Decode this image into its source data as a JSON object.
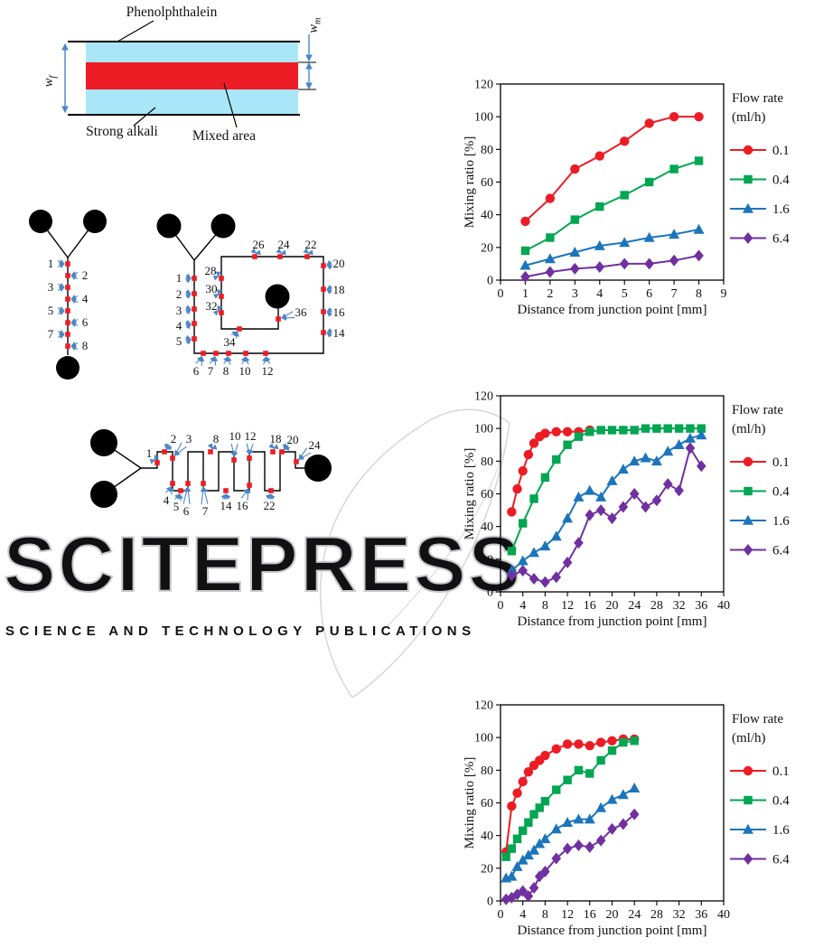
{
  "colors": {
    "phenolphthalein_layer": "#a9e7f8",
    "mixed_area_red": "#ee1c25",
    "annotation_arrow_blue": "#4a86c8",
    "series_red": "#ed1c24",
    "series_green": "#00a651",
    "series_blue": "#1c75bb",
    "series_purple": "#7030a0",
    "watermark_gray": "#c6c9ce"
  },
  "figure": {
    "cross_section": {
      "top_label": "Phenolphthalein",
      "bottom_left_label": "Strong alkali",
      "bottom_right_label": "Mixed area",
      "width_full": {
        "base": "w",
        "sub": "f"
      },
      "width_mixed": {
        "base": "w",
        "sub": "m"
      }
    },
    "mixers": {
      "straight": {
        "point_labels": [
          "1",
          "2",
          "3",
          "4",
          "5",
          "6",
          "7",
          "8"
        ]
      },
      "square_spiral": {
        "point_labels": [
          "1",
          "2",
          "3",
          "4",
          "5",
          "6",
          "7",
          "8",
          "10",
          "12",
          "14",
          "16",
          "18",
          "20",
          "22",
          "24",
          "26",
          "28",
          "30",
          "32",
          "34",
          "36"
        ]
      },
      "serpentine": {
        "point_labels": [
          "1",
          "2",
          "3",
          "4",
          "5",
          "6",
          "7",
          "8",
          "10",
          "12",
          "14",
          "16",
          "18",
          "20",
          "22",
          "24"
        ]
      }
    }
  },
  "watermark": {
    "title": "SCITEPRESS",
    "subtitle": "SCIENCE AND TECHNOLOGY PUBLICATIONS"
  },
  "chart_data": [
    {
      "type": "line",
      "title": "",
      "xlabel": "Distance from junction point [mm]",
      "ylabel": "Mixing ratio [%]",
      "xlim": [
        0,
        9
      ],
      "ylim": [
        0,
        120
      ],
      "xticks": [
        0,
        1,
        2,
        3,
        4,
        5,
        6,
        7,
        8,
        9
      ],
      "yticks": [
        0,
        20,
        40,
        60,
        80,
        100,
        120
      ],
      "grid": false,
      "legend_position": "right",
      "legend_title": [
        "Flow rate",
        "(ml/h)"
      ],
      "series": [
        {
          "name": "0.1",
          "marker": "circle",
          "color": "#ed1c24",
          "x": [
            1,
            2,
            3,
            4,
            5,
            6,
            7,
            8
          ],
          "y": [
            36,
            50,
            68,
            76,
            85,
            96,
            100,
            100
          ]
        },
        {
          "name": "0.4",
          "marker": "square",
          "color": "#00a651",
          "x": [
            1,
            2,
            3,
            4,
            5,
            6,
            7,
            8
          ],
          "y": [
            18,
            26,
            37,
            45,
            52,
            60,
            68,
            73
          ]
        },
        {
          "name": "1.6",
          "marker": "triangle",
          "color": "#1c75bb",
          "x": [
            1,
            2,
            3,
            4,
            5,
            6,
            7,
            8
          ],
          "y": [
            9,
            13,
            17,
            21,
            23,
            26,
            28,
            31
          ]
        },
        {
          "name": "6.4",
          "marker": "diamond",
          "color": "#7030a0",
          "x": [
            1,
            2,
            3,
            4,
            5,
            6,
            7,
            8
          ],
          "y": [
            2,
            5,
            7,
            8,
            10,
            10,
            12,
            15
          ]
        }
      ]
    },
    {
      "type": "line",
      "title": "",
      "xlabel": "Distance from junction point [mm]",
      "ylabel": "Mixing ratio [%]",
      "xlim": [
        0,
        40
      ],
      "ylim": [
        0,
        120
      ],
      "xticks": [
        0,
        4,
        8,
        12,
        16,
        20,
        24,
        28,
        32,
        36,
        40
      ],
      "yticks": [
        0,
        20,
        40,
        60,
        80,
        100,
        120
      ],
      "grid": false,
      "legend_position": "right",
      "legend_title": [
        "Flow rate",
        "(ml/h)"
      ],
      "series": [
        {
          "name": "0.1",
          "marker": "circle",
          "color": "#ed1c24",
          "x": [
            2,
            3,
            4,
            5,
            6,
            7,
            8,
            10,
            12,
            14,
            16
          ],
          "y": [
            49,
            63,
            74,
            84,
            91,
            95,
            97,
            98,
            98,
            98,
            99
          ]
        },
        {
          "name": "0.4",
          "marker": "square",
          "color": "#00a651",
          "x": [
            2,
            4,
            6,
            8,
            10,
            12,
            14,
            16,
            18,
            20,
            22,
            24,
            26,
            28,
            30,
            32,
            34,
            36
          ],
          "y": [
            25,
            42,
            57,
            70,
            81,
            90,
            95,
            98,
            99,
            99,
            99,
            99,
            100,
            100,
            100,
            100,
            100,
            100
          ]
        },
        {
          "name": "1.6",
          "marker": "triangle",
          "color": "#1c75bb",
          "x": [
            2,
            4,
            6,
            8,
            10,
            12,
            14,
            16,
            18,
            20,
            22,
            24,
            26,
            28,
            30,
            32,
            34,
            36
          ],
          "y": [
            13,
            19,
            24,
            28,
            34,
            45,
            58,
            62,
            58,
            68,
            75,
            80,
            82,
            80,
            86,
            90,
            94,
            96
          ]
        },
        {
          "name": "6.4",
          "marker": "diamond",
          "color": "#7030a0",
          "x": [
            2,
            4,
            6,
            8,
            10,
            12,
            14,
            16,
            18,
            20,
            22,
            24,
            26,
            28,
            30,
            32,
            34,
            36
          ],
          "y": [
            10,
            13,
            8,
            6,
            9,
            18,
            30,
            47,
            50,
            45,
            52,
            60,
            52,
            56,
            66,
            62,
            88,
            77
          ]
        }
      ]
    },
    {
      "type": "line",
      "title": "",
      "xlabel": "Distance from junction point [mm]",
      "ylabel": "Mixing ratio [%]",
      "xlim": [
        0,
        40
      ],
      "ylim": [
        0,
        120
      ],
      "xticks": [
        0,
        4,
        8,
        12,
        16,
        20,
        24,
        28,
        32,
        36,
        40
      ],
      "yticks": [
        0,
        20,
        40,
        60,
        80,
        100,
        120
      ],
      "grid": false,
      "legend_position": "right",
      "legend_title": [
        "Flow rate",
        "(ml/h)"
      ],
      "series": [
        {
          "name": "0.1",
          "marker": "circle",
          "color": "#ed1c24",
          "x": [
            1,
            2,
            3,
            4,
            5,
            6,
            7,
            8,
            10,
            12,
            14,
            16,
            18,
            20,
            22,
            24
          ],
          "y": [
            30,
            58,
            66,
            73,
            79,
            83,
            86,
            89,
            93,
            96,
            96,
            95,
            97,
            98,
            99,
            99
          ]
        },
        {
          "name": "0.4",
          "marker": "square",
          "color": "#00a651",
          "x": [
            1,
            2,
            3,
            4,
            5,
            6,
            7,
            8,
            10,
            12,
            14,
            16,
            18,
            20,
            22,
            24
          ],
          "y": [
            27,
            32,
            38,
            43,
            48,
            53,
            57,
            61,
            68,
            74,
            80,
            78,
            86,
            92,
            97,
            98
          ]
        },
        {
          "name": "1.6",
          "marker": "triangle",
          "color": "#1c75bb",
          "x": [
            1,
            2,
            3,
            4,
            5,
            6,
            7,
            8,
            10,
            12,
            14,
            16,
            18,
            20,
            22,
            24
          ],
          "y": [
            14,
            15,
            21,
            25,
            28,
            31,
            35,
            38,
            44,
            48,
            50,
            50,
            57,
            62,
            65,
            69
          ]
        },
        {
          "name": "6.4",
          "marker": "diamond",
          "color": "#7030a0",
          "x": [
            1,
            2,
            3,
            4,
            5,
            6,
            7,
            8,
            10,
            12,
            14,
            16,
            18,
            20,
            22,
            24
          ],
          "y": [
            1,
            2,
            4,
            6,
            3,
            8,
            15,
            18,
            26,
            32,
            34,
            33,
            37,
            44,
            47,
            53
          ]
        }
      ]
    }
  ]
}
